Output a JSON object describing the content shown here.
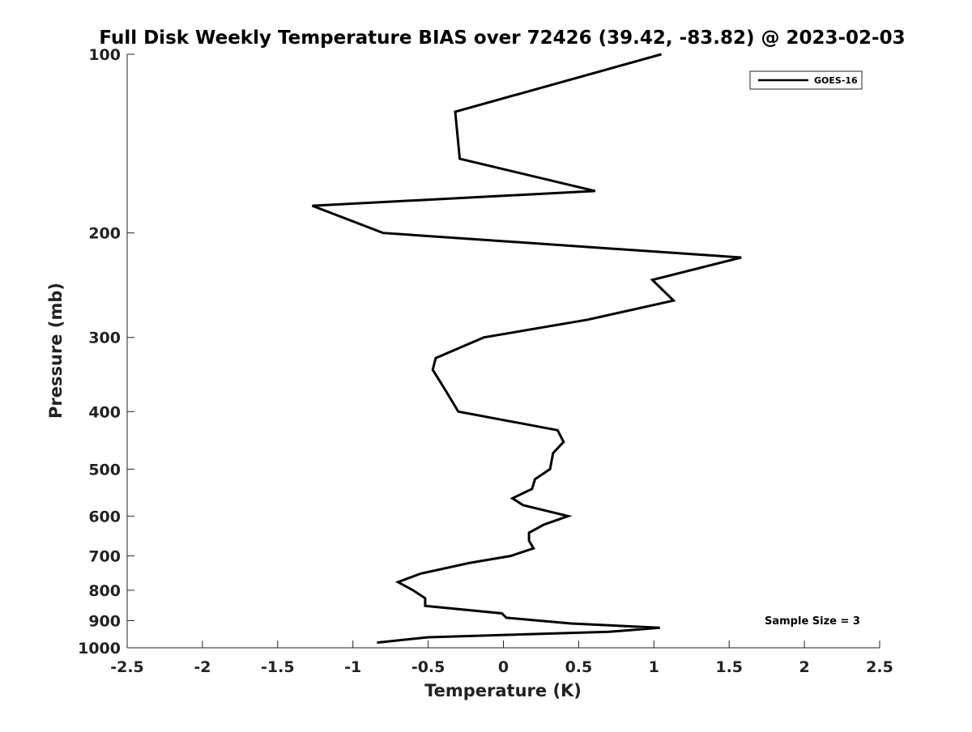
{
  "chart_data": {
    "type": "line",
    "title": "Full Disk Weekly Temperature BIAS over 72426 (39.42, -83.82) @ 2023-02-03",
    "xlabel": "Temperature (K)",
    "ylabel": "Pressure (mb)",
    "xlim": [
      -2.5,
      2.5
    ],
    "ylim": [
      100,
      1000
    ],
    "y_scale": "log",
    "y_reversed": true,
    "grid": false,
    "x_ticks": [
      -2.5,
      -2,
      -1.5,
      -1,
      -0.5,
      0,
      0.5,
      1,
      1.5,
      2,
      2.5
    ],
    "x_tick_labels": [
      "-2.5",
      "-2",
      "-1.5",
      "-1",
      "-0.5",
      "0",
      "0.5",
      "1",
      "1.5",
      "2",
      "2.5"
    ],
    "y_ticks": [
      100,
      200,
      300,
      400,
      500,
      600,
      700,
      800,
      900,
      1000
    ],
    "y_tick_labels": [
      "100",
      "200",
      "300",
      "400",
      "500",
      "600",
      "700",
      "800",
      "900",
      "1000"
    ],
    "legend_position": "top-right",
    "annotation": "Sample Size = 3",
    "series": [
      {
        "name": "GOES-16",
        "color": "#000000",
        "points": [
          {
            "p": 100,
            "t": 1.05
          },
          {
            "p": 125,
            "t": -0.32
          },
          {
            "p": 150,
            "t": -0.29
          },
          {
            "p": 170,
            "t": 0.61
          },
          {
            "p": 180,
            "t": -1.27
          },
          {
            "p": 200,
            "t": -0.8
          },
          {
            "p": 220,
            "t": 1.58
          },
          {
            "p": 240,
            "t": 0.99
          },
          {
            "p": 260,
            "t": 1.13
          },
          {
            "p": 280,
            "t": 0.56
          },
          {
            "p": 300,
            "t": -0.13
          },
          {
            "p": 325,
            "t": -0.45
          },
          {
            "p": 340,
            "t": -0.47
          },
          {
            "p": 370,
            "t": -0.38
          },
          {
            "p": 400,
            "t": -0.3
          },
          {
            "p": 430,
            "t": 0.36
          },
          {
            "p": 450,
            "t": 0.4
          },
          {
            "p": 470,
            "t": 0.33
          },
          {
            "p": 500,
            "t": 0.31
          },
          {
            "p": 520,
            "t": 0.21
          },
          {
            "p": 540,
            "t": 0.19
          },
          {
            "p": 560,
            "t": 0.06
          },
          {
            "p": 575,
            "t": 0.13
          },
          {
            "p": 600,
            "t": 0.43
          },
          {
            "p": 620,
            "t": 0.27
          },
          {
            "p": 640,
            "t": 0.17
          },
          {
            "p": 660,
            "t": 0.17
          },
          {
            "p": 680,
            "t": 0.2
          },
          {
            "p": 700,
            "t": 0.05
          },
          {
            "p": 720,
            "t": -0.23
          },
          {
            "p": 750,
            "t": -0.55
          },
          {
            "p": 775,
            "t": -0.7
          },
          {
            "p": 800,
            "t": -0.6
          },
          {
            "p": 825,
            "t": -0.52
          },
          {
            "p": 850,
            "t": -0.52
          },
          {
            "p": 875,
            "t": -0.01
          },
          {
            "p": 890,
            "t": 0.02
          },
          {
            "p": 910,
            "t": 0.45
          },
          {
            "p": 925,
            "t": 1.04
          },
          {
            "p": 940,
            "t": 0.7
          },
          {
            "p": 960,
            "t": -0.5
          },
          {
            "p": 980,
            "t": -0.84
          }
        ]
      }
    ]
  }
}
